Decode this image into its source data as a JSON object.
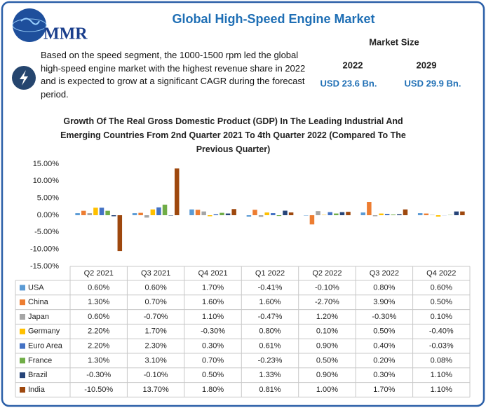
{
  "header": {
    "logo": "MMR",
    "title": "Global High-Speed Engine Market",
    "description": "Based on the speed segment, the 1000-1500 rpm led the global high-speed engine market with the highest revenue share in 2022 and is expected to grow at a significant CAGR during the forecast period."
  },
  "market_size": {
    "label": "Market Size",
    "years": [
      "2022",
      "2029"
    ],
    "values": [
      "USD 23.6 Bn.",
      "USD 29.9 Bn."
    ]
  },
  "chart_data": {
    "type": "bar",
    "title": "Growth Of The Real Gross Domestic Product (GDP) In The Leading Industrial And Emerging Countries From 2nd Quarter 2021 To 4th Quarter 2022 (Compared To The Previous Quarter)",
    "categories": [
      "Q2 2021",
      "Q3 2021",
      "Q4 2021",
      "Q1  2022",
      "Q2 2022",
      "Q3 2022",
      "Q4 2022"
    ],
    "ylim": [
      -15,
      15
    ],
    "yticks": [
      {
        "value": 15,
        "label": "15.00%"
      },
      {
        "value": 10,
        "label": "10.00%"
      },
      {
        "value": 5,
        "label": "5.00%"
      },
      {
        "value": 0,
        "label": "0.00%"
      },
      {
        "value": -5,
        "label": "-5.00%"
      },
      {
        "value": -10,
        "label": "-10.00%"
      },
      {
        "value": -15,
        "label": "-15.00%"
      }
    ],
    "grid": false,
    "series": [
      {
        "name": "USA",
        "color": "#5b9bd5",
        "values": [
          0.6,
          0.6,
          1.7,
          -0.41,
          -0.1,
          0.8,
          0.6
        ],
        "value_labels": [
          "0.60%",
          "0.60%",
          "1.70%",
          "-0.41%",
          "-0.10%",
          "0.80%",
          "0.60%"
        ]
      },
      {
        "name": "China",
        "color": "#ed7d31",
        "values": [
          1.3,
          0.7,
          1.6,
          1.6,
          -2.7,
          3.9,
          0.5
        ],
        "value_labels": [
          "1.30%",
          "0.70%",
          "1.60%",
          "1.60%",
          "-2.70%",
          "3.90%",
          "0.50%"
        ]
      },
      {
        "name": "Japan",
        "color": "#a5a5a5",
        "values": [
          0.6,
          -0.7,
          1.1,
          -0.47,
          1.2,
          -0.3,
          0.1
        ],
        "value_labels": [
          "0.60%",
          "-0.70%",
          "1.10%",
          "-0.47%",
          "1.20%",
          "-0.30%",
          "0.10%"
        ]
      },
      {
        "name": "Germany",
        "color": "#ffc000",
        "values": [
          2.2,
          1.7,
          -0.3,
          0.8,
          0.1,
          0.5,
          -0.4
        ],
        "value_labels": [
          "2.20%",
          "1.70%",
          "-0.30%",
          "0.80%",
          "0.10%",
          "0.50%",
          "-0.40%"
        ]
      },
      {
        "name": "Euro Area",
        "color": "#4472c4",
        "values": [
          2.2,
          2.3,
          0.3,
          0.61,
          0.9,
          0.4,
          -0.03
        ],
        "value_labels": [
          "2.20%",
          "2.30%",
          "0.30%",
          "0.61%",
          "0.90%",
          "0.40%",
          "-0.03%"
        ]
      },
      {
        "name": "France",
        "color": "#70ad47",
        "values": [
          1.3,
          3.1,
          0.7,
          -0.23,
          0.5,
          0.2,
          0.08
        ],
        "value_labels": [
          "1.30%",
          "3.10%",
          "0.70%",
          "-0.23%",
          "0.50%",
          "0.20%",
          "0.08%"
        ]
      },
      {
        "name": "Brazil",
        "color": "#264478",
        "values": [
          -0.3,
          -0.1,
          0.5,
          1.33,
          0.9,
          0.3,
          1.1
        ],
        "value_labels": [
          "-0.30%",
          "-0.10%",
          "0.50%",
          "1.33%",
          "0.90%",
          "0.30%",
          "1.10%"
        ]
      },
      {
        "name": "India",
        "color": "#9e480e",
        "values": [
          -10.5,
          13.7,
          1.8,
          0.81,
          1.0,
          1.7,
          1.1
        ],
        "value_labels": [
          "-10.50%",
          "13.70%",
          "1.80%",
          "0.81%",
          "1.00%",
          "1.70%",
          "1.10%"
        ]
      }
    ]
  }
}
